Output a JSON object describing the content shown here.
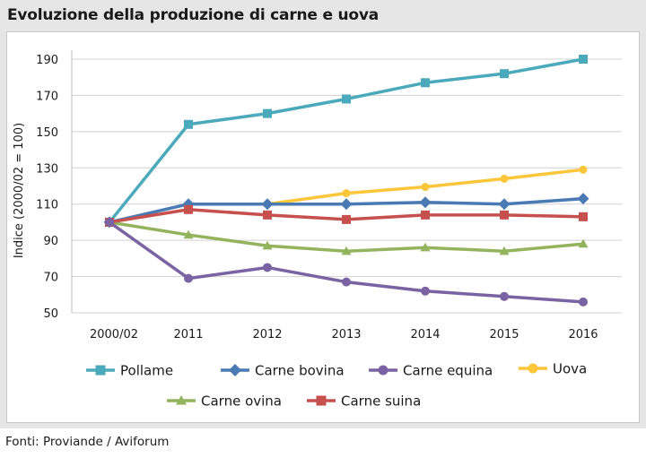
{
  "title": "Evoluzione della produzione di carne e uova",
  "source": "Fonti: Proviande / Aviforum",
  "chart_data": {
    "type": "line",
    "ylabel": "Indice (2000/02 = 100)",
    "ylim": [
      50,
      190
    ],
    "yticks": [
      50,
      70,
      90,
      110,
      130,
      150,
      170,
      190
    ],
    "x": [
      "2000/02",
      "2011",
      "2012",
      "2013",
      "2014",
      "2015",
      "2016"
    ],
    "grid": "horizontal",
    "legend_position": "bottom",
    "series": [
      {
        "name": "Pollame",
        "color": "#4aaabb",
        "marker": "square",
        "values": [
          100,
          154,
          160,
          168,
          177,
          182,
          190
        ]
      },
      {
        "name": "Carne bovina",
        "color": "#4a7ab4",
        "marker": "diamond",
        "values": [
          100,
          110,
          110,
          110,
          111,
          110,
          113
        ]
      },
      {
        "name": "Carne equina",
        "color": "#7b62a3",
        "marker": "circle",
        "values": [
          100,
          69,
          75,
          67,
          62,
          59,
          56
        ]
      },
      {
        "name": "Uova",
        "color": "#fcc63a",
        "marker": "circle",
        "values": [
          null,
          null,
          110,
          116,
          119.5,
          124,
          129
        ]
      },
      {
        "name": "Carne ovina",
        "color": "#93b45c",
        "marker": "triangle",
        "values": [
          100,
          93,
          87,
          84,
          86,
          84,
          88
        ]
      },
      {
        "name": "Carne suina",
        "color": "#c5504d",
        "marker": "square",
        "values": [
          100,
          107,
          104,
          101.5,
          104,
          104,
          103
        ]
      }
    ]
  }
}
